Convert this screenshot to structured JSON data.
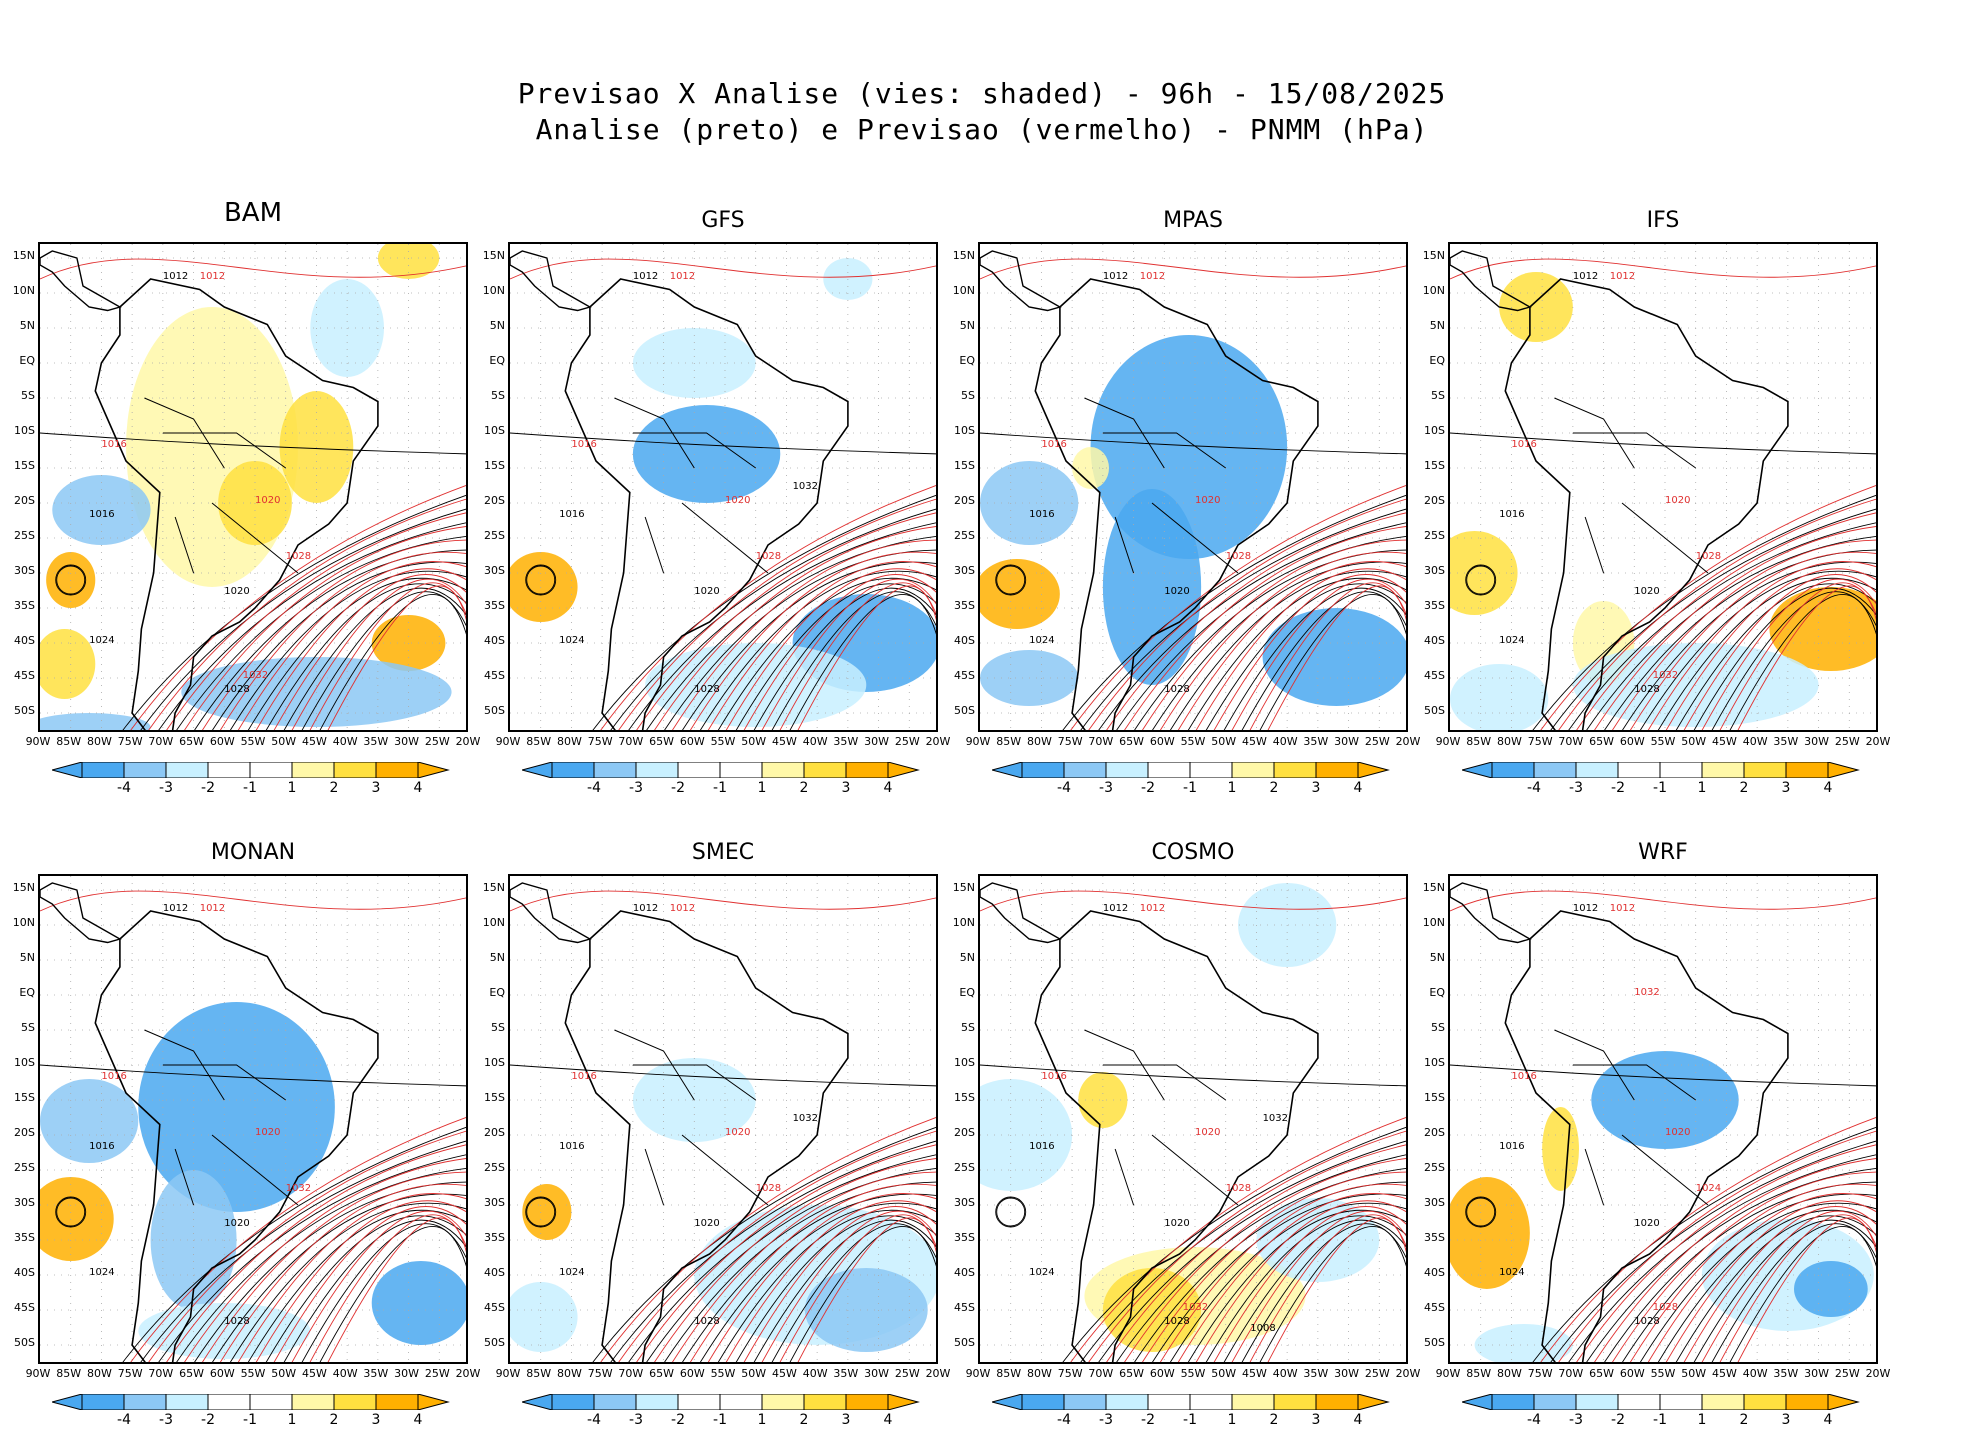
{
  "title": {
    "line1": "Previsao X Analise (vies: shaded) - 96h - 15/08/2025",
    "line2": "Analise (preto) e Previsao (vermelho) - PNMM (hPa)"
  },
  "colors": {
    "strong_neg": "#4aa8f0",
    "mid_neg": "#8cc8f5",
    "weak_neg": "#c8f0ff",
    "neutral": "#ffffff",
    "weak_pos": "#fff8a8",
    "mid_pos": "#ffe040",
    "strong_pos": "#ffb000",
    "analysis_contour": "#000000",
    "forecast_contour": "#e03030"
  },
  "lat_labels": [
    "15N",
    "10N",
    "5N",
    "EQ",
    "5S",
    "10S",
    "15S",
    "20S",
    "25S",
    "30S",
    "35S",
    "40S",
    "45S",
    "50S"
  ],
  "lon_labels": [
    "90W",
    "85W",
    "80W",
    "75W",
    "70W",
    "65W",
    "60W",
    "55W",
    "50W",
    "45W",
    "40W",
    "35W",
    "30W",
    "25W",
    "20W"
  ],
  "colorbar_labels": [
    "-4",
    "-3",
    "-2",
    "-1",
    "1",
    "2",
    "3",
    "4"
  ],
  "panels": [
    {
      "name": "BAM",
      "labels_black": [
        "1012",
        "1016",
        "1020",
        "1024",
        "1028"
      ],
      "labels_red": [
        "1012",
        "1016",
        "1020",
        "1028",
        "1032"
      ]
    },
    {
      "name": "GFS",
      "labels_black": [
        "1012",
        "1016",
        "1020",
        "1024",
        "1028",
        "1032"
      ],
      "labels_red": [
        "1012",
        "1016",
        "1020",
        "1028"
      ]
    },
    {
      "name": "MPAS",
      "labels_black": [
        "1012",
        "1016",
        "1020",
        "1024",
        "1028"
      ],
      "labels_red": [
        "1012",
        "1016",
        "1020",
        "1028"
      ]
    },
    {
      "name": "IFS",
      "labels_black": [
        "1012",
        "1016",
        "1020",
        "1024",
        "1028"
      ],
      "labels_red": [
        "1012",
        "1016",
        "1020",
        "1028",
        "1032"
      ]
    },
    {
      "name": "MONAN",
      "labels_black": [
        "1012",
        "1016",
        "1020",
        "1024",
        "1028"
      ],
      "labels_red": [
        "1012",
        "1016",
        "1020",
        "1032"
      ]
    },
    {
      "name": "SMEC",
      "labels_black": [
        "1012",
        "1016",
        "1020",
        "1024",
        "1028",
        "1032"
      ],
      "labels_red": [
        "1012",
        "1016",
        "1020",
        "1028"
      ]
    },
    {
      "name": "COSMO",
      "labels_black": [
        "1012",
        "1016",
        "1020",
        "1024",
        "1028",
        "1032",
        "1008"
      ],
      "labels_red": [
        "1012",
        "1016",
        "1020",
        "1028",
        "1032"
      ]
    },
    {
      "name": "WRF",
      "labels_black": [
        "1012",
        "1016",
        "1020",
        "1024",
        "1028"
      ],
      "labels_red": [
        "1012",
        "1016",
        "1020",
        "1024",
        "1028",
        "1032"
      ]
    }
  ]
}
